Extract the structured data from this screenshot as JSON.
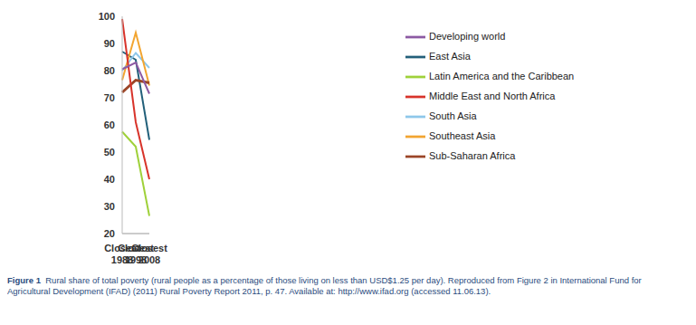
{
  "chart_data": {
    "type": "line",
    "categories": [
      "Closest 1988",
      "Closest 1998",
      "Closest 2008"
    ],
    "ylim": [
      20,
      100
    ],
    "yticks": [
      20,
      30,
      40,
      50,
      60,
      70,
      80,
      90,
      100
    ],
    "grid": false,
    "legend": "right",
    "series": [
      {
        "name": "East Asia",
        "color": "#23607a",
        "values": [
          87,
          84,
          54.5
        ]
      },
      {
        "name": "South Asia",
        "color": "#8ec7ea",
        "values": [
          80,
          86.5,
          81
        ]
      },
      {
        "name": "Southeast Asia",
        "color": "#f2a531",
        "values": [
          76.5,
          94,
          74.5
        ]
      },
      {
        "name": "Sub-Saharan Africa",
        "color": "#9b4527",
        "values": [
          72,
          76.5,
          75.5
        ]
      },
      {
        "name": "Latin America and the Caribbean",
        "color": "#9fd13a",
        "values": [
          57.5,
          52,
          26.5
        ]
      },
      {
        "name": "Middle East and North Africa",
        "color": "#d8342b",
        "values": [
          99,
          61,
          40
        ]
      },
      {
        "name": "Developing world",
        "color": "#8c5aa3",
        "values": [
          80.5,
          83,
          71.5
        ]
      }
    ],
    "annotations": [
      "Figure 1",
      "Rural share of total poverty (rural people as a percentage of those living on less than USD$1.25 per day). Reproduced from Figure 2 in International Fund for Agricultural Development (IFAD) (2011) Rural Poverty Report 2011, p. 47. Available at: http://www.ifad.org (accessed 11.06.13)."
    ]
  }
}
